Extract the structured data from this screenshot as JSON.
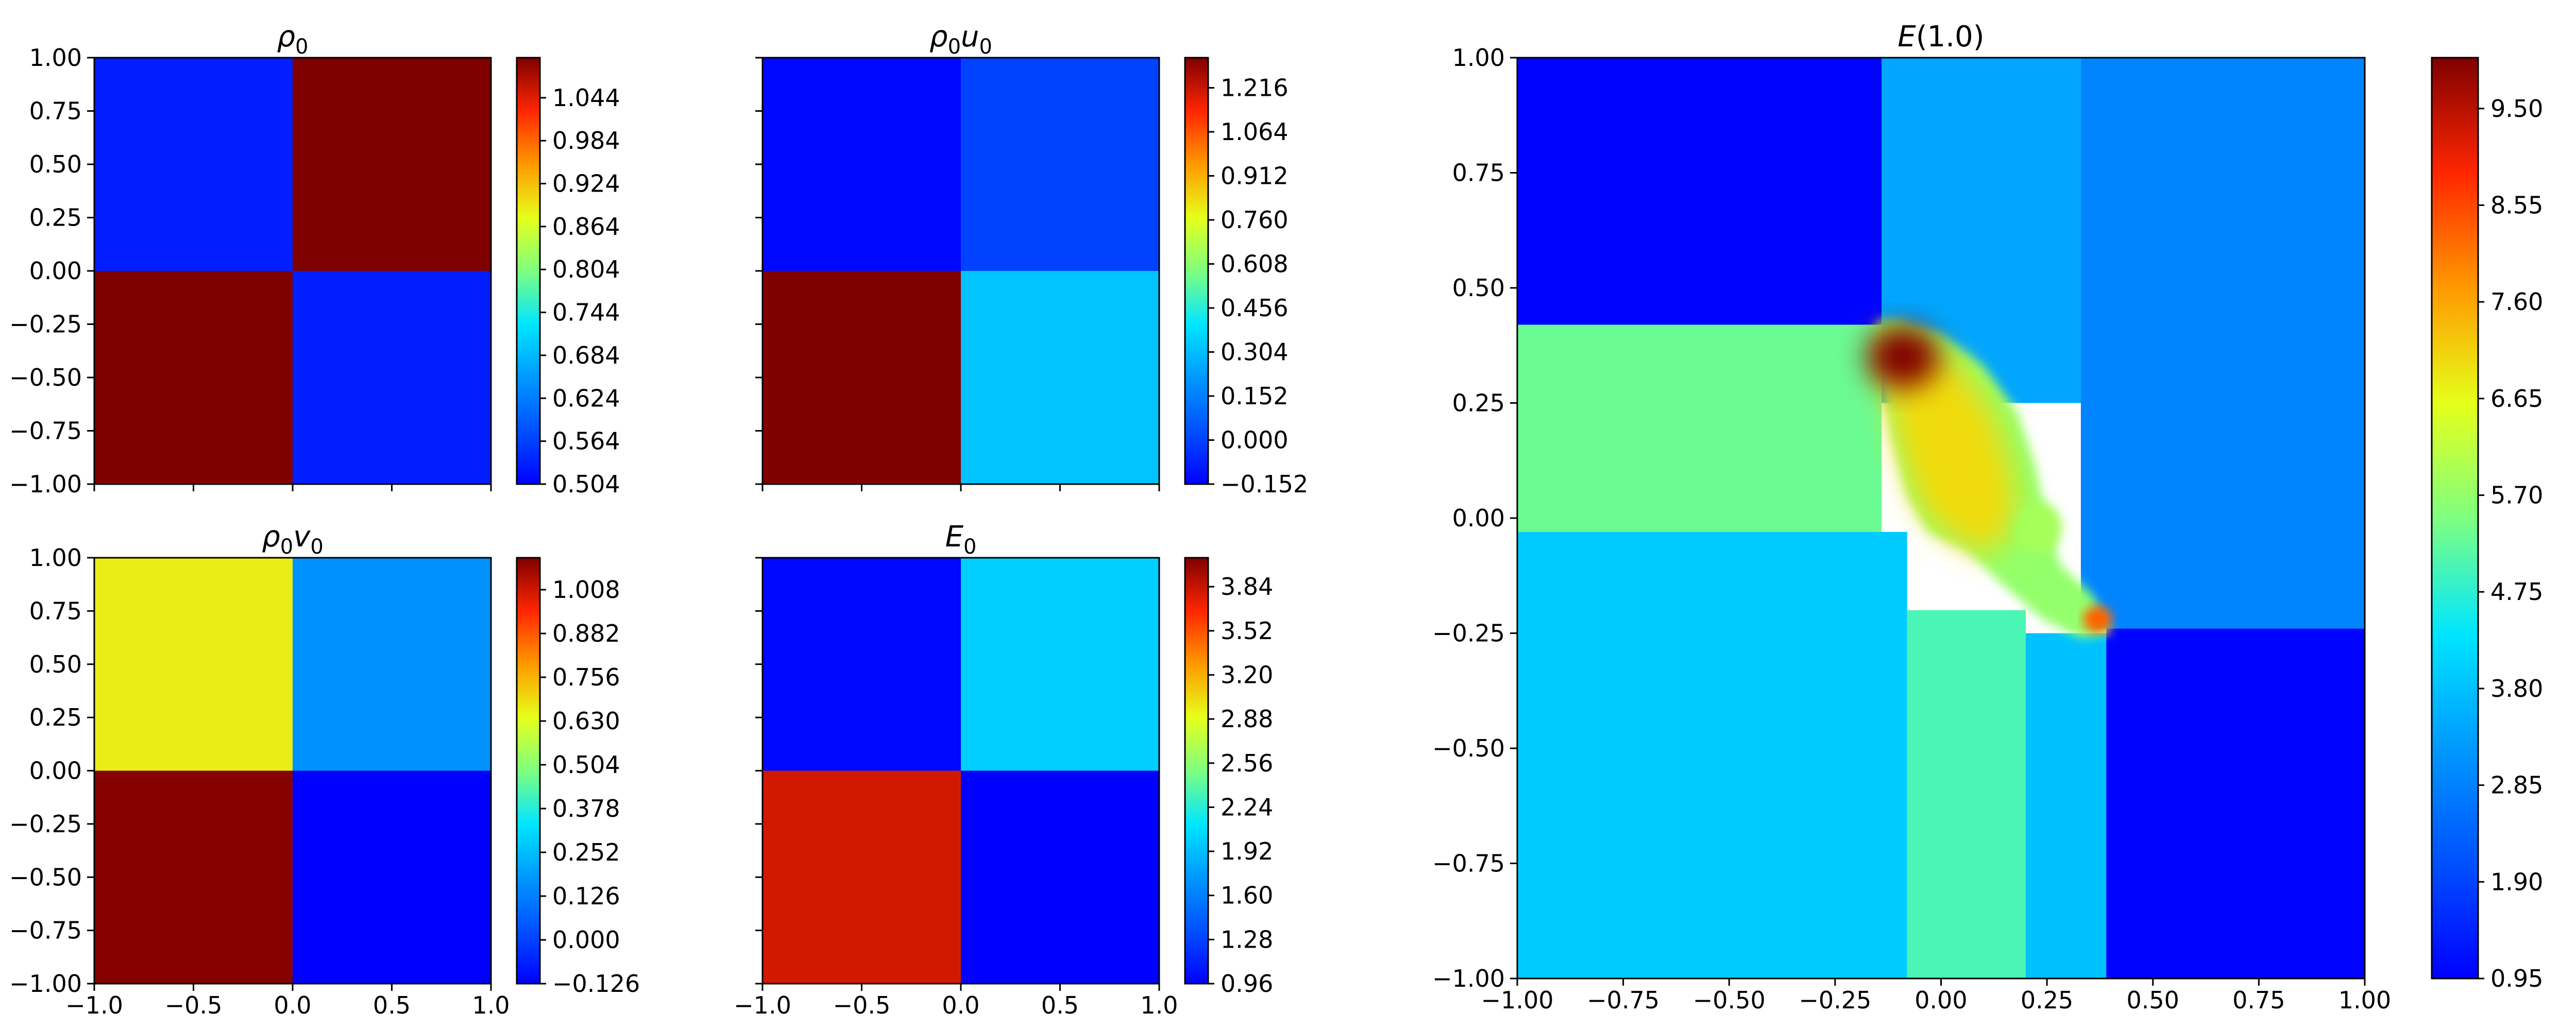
{
  "chart_data": [
    {
      "type": "heatmap",
      "title_parts": {
        "base": "ρ",
        "sub": "0",
        "base2": "",
        "sub2": ""
      },
      "xlim": [
        -1,
        1
      ],
      "ylim": [
        -1,
        1
      ],
      "x_ticks": [
        "−1.0",
        "−0.5",
        "0.0",
        "0.5",
        "1.0"
      ],
      "x_tick_labels_visible": false,
      "y_ticks": [
        "1.00",
        "0.75",
        "0.50",
        "0.25",
        "0.00",
        "−0.25",
        "−0.50",
        "−0.75",
        "−1.00"
      ],
      "y_tick_labels_visible": true,
      "quadrants": {
        "top_left": 0.5323,
        "top_right": 1.1,
        "bottom_left": 1.1,
        "bottom_right": 0.5323
      },
      "colorbar": {
        "min": 0.504,
        "max": 1.1,
        "ticks": [
          "1.044",
          "0.984",
          "0.924",
          "0.864",
          "0.804",
          "0.744",
          "0.684",
          "0.624",
          "0.564",
          "0.504"
        ]
      }
    },
    {
      "type": "heatmap",
      "title_parts": {
        "base": "ρ",
        "sub": "0",
        "base2": "u",
        "sub2": "0"
      },
      "xlim": [
        -1,
        1
      ],
      "ylim": [
        -1,
        1
      ],
      "x_ticks": [
        "−1.0",
        "−0.5",
        "0.0",
        "0.5",
        "1.0"
      ],
      "x_tick_labels_visible": false,
      "y_ticks": [
        "1.00",
        "0.75",
        "0.50",
        "0.25",
        "0.00",
        "−0.25",
        "−0.50",
        "−0.75",
        "−1.00"
      ],
      "y_tick_labels_visible": false,
      "quadrants": {
        "top_left": -0.1325,
        "top_right": 0.0,
        "bottom_left": 1.3205,
        "bottom_right": 0.3162
      },
      "colorbar": {
        "min": -0.152,
        "max": 1.32,
        "ticks": [
          "1.216",
          "1.064",
          "0.912",
          "0.760",
          "0.608",
          "0.456",
          "0.304",
          "0.152",
          "0.000",
          "−0.152"
        ]
      }
    },
    {
      "type": "heatmap",
      "title_parts": {
        "base": "ρ",
        "sub": "0",
        "base2": "v",
        "sub2": "0"
      },
      "xlim": [
        -1,
        1
      ],
      "ylim": [
        -1,
        1
      ],
      "x_ticks": [
        "−1.0",
        "−0.5",
        "0.0",
        "0.5",
        "1.0"
      ],
      "x_tick_labels_visible": true,
      "y_ticks": [
        "1.00",
        "0.75",
        "0.50",
        "0.25",
        "0.00",
        "−0.25",
        "−0.50",
        "−0.75",
        "−1.00"
      ],
      "y_tick_labels_visible": true,
      "quadrants": {
        "top_left": 0.6667,
        "top_right": 0.168,
        "bottom_left": 1.0927,
        "bottom_right": -0.126
      },
      "colorbar": {
        "min": -0.126,
        "max": 1.1,
        "ticks": [
          "1.008",
          "0.882",
          "0.756",
          "0.630",
          "0.504",
          "0.378",
          "0.252",
          "0.126",
          "0.000",
          "−0.126"
        ]
      }
    },
    {
      "type": "heatmap",
      "title_parts": {
        "base": "E",
        "sub": "0",
        "base2": "",
        "sub2": ""
      },
      "xlim": [
        -1,
        1
      ],
      "ylim": [
        -1,
        1
      ],
      "x_ticks": [
        "−1.0",
        "−0.5",
        "0.0",
        "0.5",
        "1.0"
      ],
      "x_tick_labels_visible": true,
      "y_ticks": [
        "1.00",
        "0.75",
        "0.50",
        "0.25",
        "0.00",
        "−0.25",
        "−0.50",
        "−0.75",
        "−1.00"
      ],
      "y_tick_labels_visible": false,
      "quadrants": {
        "top_left": 1.0,
        "top_right": 2.0,
        "bottom_left": 3.8,
        "bottom_right": 0.96
      },
      "colorbar": {
        "min": 0.96,
        "max": 4.05,
        "ticks": [
          "3.84",
          "3.52",
          "3.20",
          "2.88",
          "2.56",
          "2.24",
          "1.92",
          "1.60",
          "1.28",
          "0.96"
        ]
      }
    },
    {
      "type": "heatmap",
      "title_parts": {
        "base": "E",
        "sub": "",
        "base2": "(1.0)",
        "sub2": ""
      },
      "xlim": [
        -1,
        1
      ],
      "ylim": [
        -1,
        1
      ],
      "x_ticks": [
        "−1.00",
        "−0.75",
        "−0.50",
        "−0.25",
        "0.00",
        "0.25",
        "0.50",
        "0.75",
        "1.00"
      ],
      "x_tick_labels_visible": true,
      "y_ticks": [
        "1.00",
        "0.75",
        "0.50",
        "0.25",
        "0.00",
        "−0.25",
        "−0.50",
        "−0.75",
        "−1.00"
      ],
      "y_tick_labels_visible": true,
      "colorbar": {
        "min": 0.95,
        "max": 10.0,
        "ticks": [
          "9.50",
          "8.55",
          "7.60",
          "6.65",
          "5.70",
          "4.75",
          "3.80",
          "2.85",
          "1.90",
          "0.95"
        ]
      },
      "regions": [
        {
          "name": "upper-left",
          "x": [
            -1.0,
            -0.14
          ],
          "y": [
            0.42,
            1.0
          ],
          "value": 1.0
        },
        {
          "name": "upper-middle",
          "x": [
            -0.14,
            0.33
          ],
          "y": [
            0.25,
            1.0
          ],
          "value": 3.4
        },
        {
          "name": "upper-right",
          "x": [
            0.33,
            1.0
          ],
          "y": [
            -0.24,
            1.0
          ],
          "value": 2.9
        },
        {
          "name": "left-band",
          "x": [
            -1.0,
            -0.14
          ],
          "y": [
            -0.03,
            0.42
          ],
          "value": 5.3
        },
        {
          "name": "lower-left",
          "x": [
            -1.0,
            -0.08
          ],
          "y": [
            -1.0,
            -0.03
          ],
          "value": 3.95
        },
        {
          "name": "lower-middle",
          "x": [
            -0.08,
            0.2
          ],
          "y": [
            -1.0,
            -0.2
          ],
          "value": 5.0
        },
        {
          "name": "lower-strip",
          "x": [
            0.2,
            0.39
          ],
          "y": [
            -1.0,
            -0.25
          ],
          "value": 3.8
        },
        {
          "name": "lower-right",
          "x": [
            0.39,
            1.0
          ],
          "y": [
            -1.0,
            -0.24
          ],
          "value": 1.0
        }
      ],
      "bubble": {
        "peak_value": 10.0,
        "body_value": 7.0,
        "edge_value": 5.7
      }
    }
  ]
}
